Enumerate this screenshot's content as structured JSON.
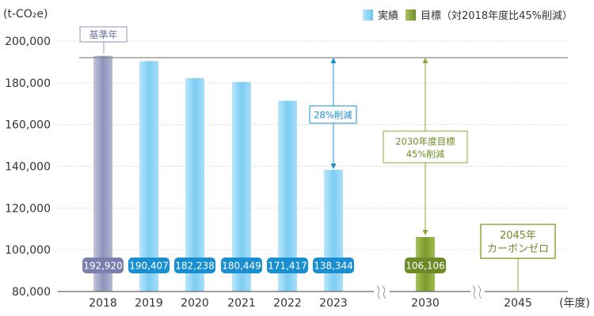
{
  "chart_data": {
    "type": "bar",
    "unit_label": "(t-CO₂e)",
    "x_unit_label": "(年度)",
    "ylim": [
      80000,
      200000
    ],
    "y_ticks": [
      "80,000",
      "100,000",
      "120,000",
      "140,000",
      "160,000",
      "180,000",
      "200,000"
    ],
    "y_tick_values": [
      80000,
      100000,
      120000,
      140000,
      160000,
      180000,
      200000
    ],
    "grid": true,
    "legend_position": "top-right",
    "legend": [
      {
        "label": "実績",
        "color": "#7fcdf3"
      },
      {
        "label": "目標（対2018年度比45%削減）",
        "color": "#8aa83a"
      }
    ],
    "categories": [
      "2018",
      "2019",
      "2020",
      "2021",
      "2022",
      "2023",
      "2030",
      "2045"
    ],
    "bars": [
      {
        "year": "2018",
        "value": 192920,
        "label": "192,920",
        "kind": "base"
      },
      {
        "year": "2019",
        "value": 190407,
        "label": "190,407",
        "kind": "actual"
      },
      {
        "year": "2020",
        "value": 182238,
        "label": "182,238",
        "kind": "actual"
      },
      {
        "year": "2021",
        "value": 180449,
        "label": "180,449",
        "kind": "actual"
      },
      {
        "year": "2022",
        "value": 171417,
        "label": "171,417",
        "kind": "actual"
      },
      {
        "year": "2023",
        "value": 138344,
        "label": "138,344",
        "kind": "actual"
      },
      {
        "year": "2030",
        "value": 106106,
        "label": "106,106",
        "kind": "target"
      }
    ],
    "base_year_label": "基準年",
    "annotations": [
      {
        "text": "28%削減"
      },
      {
        "lines": [
          "2030年度目標",
          "45%削減"
        ]
      },
      {
        "lines": [
          "2045年",
          "カーボンゼロ"
        ]
      }
    ],
    "colors": {
      "base": "#9ea3c6",
      "actual": "#84d0f5",
      "target": "#8aa83a",
      "actual_label": "#1a8fd0",
      "base_label": "#7a7fae",
      "target_label": "#6e8a26"
    }
  }
}
